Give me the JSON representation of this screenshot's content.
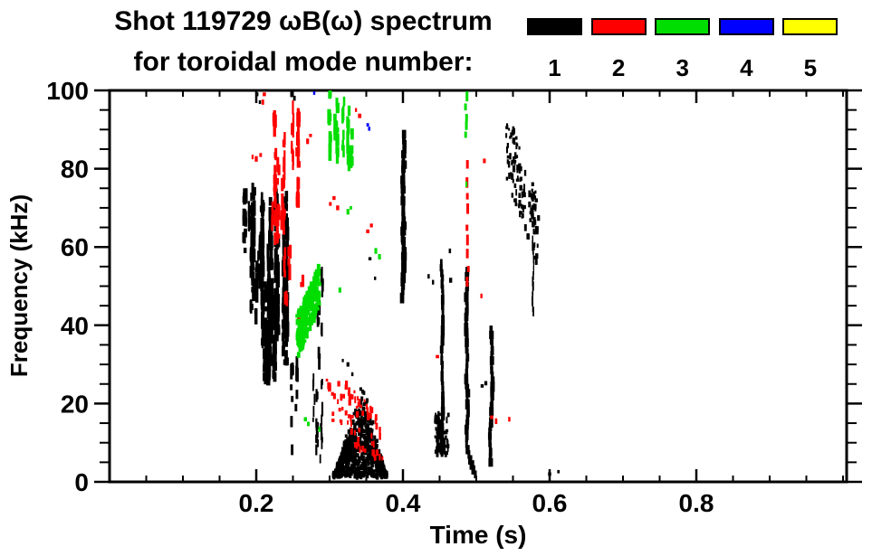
{
  "chart_data": {
    "type": "scatter",
    "title_line1": "Shot 119729 ωB(ω) spectrum",
    "title_line2": "for toroidal mode number:",
    "xlabel": "Time (s)",
    "ylabel": "Frequency (kHz)",
    "xlim": [
      0,
      1.005
    ],
    "ylim": [
      0,
      100
    ],
    "grid": "off",
    "axis_color": "#000000",
    "background": "#ffffff",
    "x_ticks": [
      {
        "v": 0.2,
        "label": "0.2"
      },
      {
        "v": 0.4,
        "label": "0.4"
      },
      {
        "v": 0.6,
        "label": "0.6"
      },
      {
        "v": 0.8,
        "label": "0.8"
      }
    ],
    "x_minor_step": 0.05,
    "y_ticks": [
      {
        "v": 0,
        "label": "0"
      },
      {
        "v": 20,
        "label": "20"
      },
      {
        "v": 40,
        "label": "40"
      },
      {
        "v": 60,
        "label": "60"
      },
      {
        "v": 80,
        "label": "80"
      },
      {
        "v": 100,
        "label": "100"
      }
    ],
    "y_minor_step": 5,
    "legend": {
      "position": "top-right",
      "entries": [
        {
          "label": "1",
          "mode": 1,
          "color": "#000000"
        },
        {
          "label": "2",
          "mode": 2,
          "color": "#ff0000"
        },
        {
          "label": "3",
          "mode": 3,
          "color": "#00dd00"
        },
        {
          "label": "4",
          "mode": 4,
          "color": "#0000ff"
        },
        {
          "label": "5",
          "mode": 5,
          "color": "#ffff00"
        }
      ]
    },
    "mode_colors": {
      "1": "#000000",
      "2": "#ff0000",
      "3": "#00dd00",
      "4": "#0000ff",
      "5": "#ffff00"
    },
    "clusters": [
      {
        "mode": 1,
        "style": "vstreaks",
        "seed": 11,
        "t": [
          0.183,
          0.207
        ],
        "f": [
          42,
          75
        ],
        "cols": 11,
        "w": 3
      },
      {
        "mode": 1,
        "style": "vstreaks",
        "seed": 12,
        "t": [
          0.205,
          0.246
        ],
        "f": [
          26,
          73
        ],
        "cols": 17,
        "w": 3.5,
        "dense": true
      },
      {
        "mode": 1,
        "style": "vstreaks",
        "seed": 13,
        "t": [
          0.248,
          0.302
        ],
        "f": [
          4,
          58
        ],
        "cols": 7,
        "w": 2.5,
        "sparse": true
      },
      {
        "mode": 1,
        "style": "tri",
        "seed": 14,
        "t": [
          0.305,
          0.378
        ],
        "peak": 0.345,
        "f0": 1.5,
        "f1": 22,
        "n": 800
      },
      {
        "mode": 1,
        "style": "vline",
        "seed": 15,
        "t": 0.402,
        "f": [
          47,
          89
        ],
        "w": 5,
        "wiggle": 3
      },
      {
        "mode": 1,
        "style": "vline",
        "seed": 16,
        "t": 0.452,
        "f": [
          7,
          56
        ],
        "w": 3.5,
        "wiggle": 2
      },
      {
        "mode": 1,
        "style": "scatter",
        "seed": 17,
        "t": [
          0.444,
          0.462
        ],
        "f": [
          7,
          18
        ],
        "n": 70
      },
      {
        "mode": 1,
        "style": "vline",
        "seed": 18,
        "t": 0.488,
        "f": [
          1,
          54
        ],
        "w": 4,
        "wiggle": 1.5,
        "hook": 11
      },
      {
        "mode": 1,
        "style": "vline",
        "seed": 19,
        "t": 0.521,
        "f": [
          4,
          39
        ],
        "w": 4,
        "wiggle": 2
      },
      {
        "mode": 1,
        "style": "scatter",
        "seed": 20,
        "t": [
          0.54,
          0.585
        ],
        "f": [
          55,
          91
        ],
        "n": 110,
        "f_start": 87,
        "f_end": 63,
        "jitter": 9
      },
      {
        "mode": 1,
        "style": "vline",
        "seed": 21,
        "t": 0.577,
        "f": [
          43,
          62
        ],
        "w": 1.5,
        "wiggle": 1
      },
      {
        "mode": 1,
        "style": "points",
        "seed": 22,
        "points": [
          [
            0.201,
            99
          ],
          [
            0.205,
            97
          ],
          [
            0.248,
            99
          ],
          [
            0.252,
            98
          ],
          [
            0.355,
            57
          ],
          [
            0.362,
            52
          ],
          [
            0.435,
            52.5
          ],
          [
            0.441,
            51
          ],
          [
            0.464,
            59
          ],
          [
            0.465,
            51.5
          ],
          [
            0.508,
            24.5
          ],
          [
            0.513,
            25.2
          ],
          [
            0.318,
            31
          ],
          [
            0.325,
            30
          ],
          [
            0.331,
            27.5
          ],
          [
            0.6,
            2
          ],
          [
            0.612,
            2.6
          ]
        ]
      },
      {
        "mode": 2,
        "style": "vstreaks",
        "seed": 31,
        "t": [
          0.222,
          0.263
        ],
        "f": [
          62,
          97
        ],
        "cols": 13,
        "w": 3
      },
      {
        "mode": 2,
        "style": "vstreaks",
        "seed": 32,
        "t": [
          0.23,
          0.27
        ],
        "f": [
          45,
          62
        ],
        "cols": 5,
        "w": 2.5,
        "sparse": true
      },
      {
        "mode": 2,
        "style": "scatter",
        "seed": 33,
        "t": [
          0.295,
          0.372
        ],
        "f": [
          6,
          26
        ],
        "n": 80,
        "f_start": 24,
        "f_end": 9,
        "jitter": 7
      },
      {
        "mode": 2,
        "style": "vdash",
        "seed": 34,
        "t": 0.4885,
        "f": [
          49,
          83
        ],
        "k": 9
      },
      {
        "mode": 2,
        "style": "points",
        "seed": 35,
        "points": [
          [
            0.195,
            83
          ],
          [
            0.2,
            82.5
          ],
          [
            0.206,
            83.5
          ],
          [
            0.209,
            97
          ],
          [
            0.211,
            99
          ],
          [
            0.27,
            87
          ],
          [
            0.274,
            88.5
          ],
          [
            0.301,
            71
          ],
          [
            0.306,
            72.5
          ],
          [
            0.311,
            70
          ],
          [
            0.336,
            95
          ],
          [
            0.341,
            93.5
          ],
          [
            0.352,
            64
          ],
          [
            0.357,
            65.5
          ],
          [
            0.258,
            42
          ],
          [
            0.259,
            39.5
          ],
          [
            0.447,
            32
          ],
          [
            0.507,
            47.5
          ],
          [
            0.511,
            82
          ],
          [
            0.521,
            16.5
          ],
          [
            0.527,
            15.5
          ],
          [
            0.545,
            16
          ]
        ]
      },
      {
        "mode": 3,
        "style": "vstreaks",
        "seed": 41,
        "t": [
          0.297,
          0.313
        ],
        "f": [
          81,
          100
        ],
        "cols": 4,
        "w": 3
      },
      {
        "mode": 3,
        "style": "vstreaks",
        "seed": 42,
        "t": [
          0.318,
          0.331
        ],
        "f": [
          79,
          100
        ],
        "cols": 3,
        "w": 3
      },
      {
        "mode": 3,
        "style": "scatter",
        "seed": 43,
        "t": [
          0.256,
          0.286
        ],
        "f": [
          32,
          55
        ],
        "n": 220,
        "f_start": 37,
        "f_end": 50,
        "jitter": 5.5,
        "w": 3.5
      },
      {
        "mode": 3,
        "style": "vdash",
        "seed": 44,
        "t": 0.4865,
        "f": [
          87,
          99
        ],
        "k": 5
      },
      {
        "mode": 3,
        "style": "points",
        "seed": 45,
        "points": [
          [
            0.4865,
            76
          ],
          [
            0.267,
            16
          ],
          [
            0.271,
            14.8
          ],
          [
            0.286,
            13.4
          ],
          [
            0.314,
            49
          ],
          [
            0.325,
            69
          ],
          [
            0.329,
            70
          ],
          [
            0.363,
            59
          ],
          [
            0.368,
            57.5
          ]
        ]
      },
      {
        "mode": 4,
        "style": "points",
        "seed": 51,
        "points": [
          [
            0.279,
            99.3
          ],
          [
            0.352,
            91.2
          ],
          [
            0.354,
            90.2
          ]
        ]
      }
    ]
  }
}
